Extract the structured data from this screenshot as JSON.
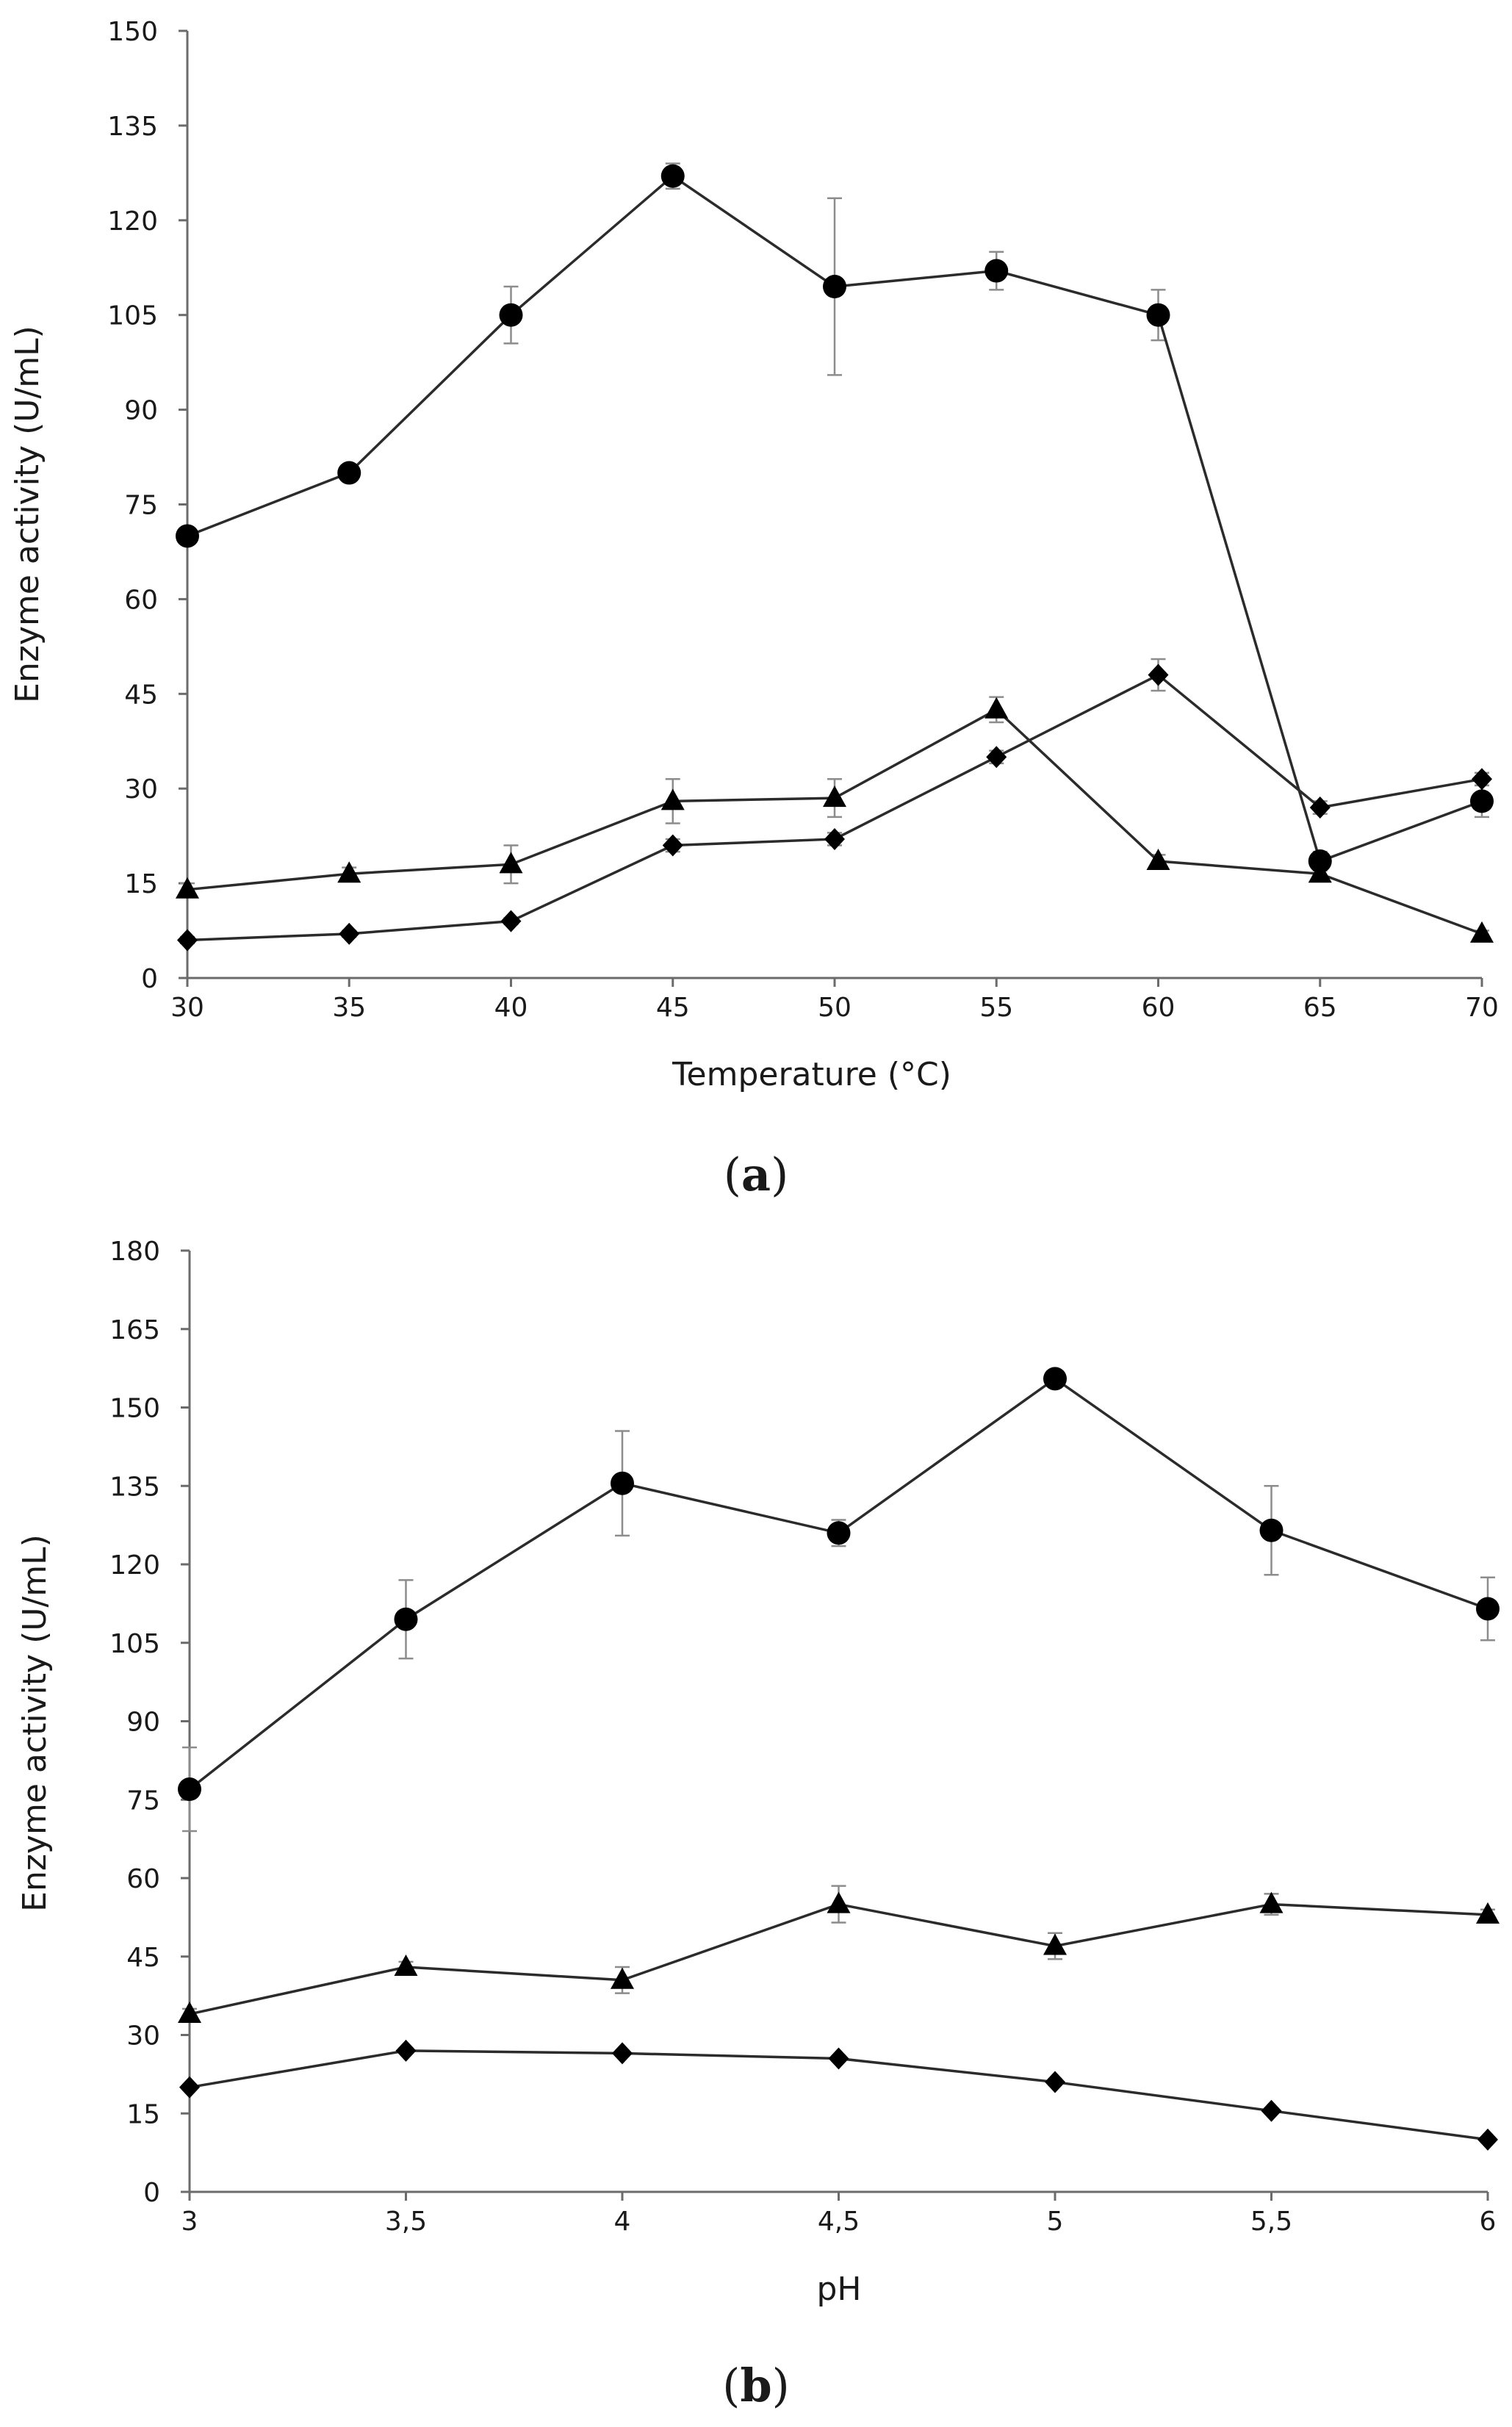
{
  "chart_data": [
    {
      "id": "a",
      "type": "line",
      "caption_letter": "a",
      "xlabel": "Temperature (°C)",
      "ylabel": "Enzyme activity (U/mL)",
      "x": [
        30,
        35,
        40,
        45,
        50,
        55,
        60,
        65,
        70
      ],
      "x_tick_labels": [
        "30",
        "35",
        "40",
        "45",
        "50",
        "55",
        "60",
        "65",
        "70"
      ],
      "xlim": [
        30,
        70
      ],
      "ylim": [
        0,
        150
      ],
      "y_ticks": [
        0,
        15,
        30,
        45,
        60,
        75,
        90,
        105,
        120,
        135,
        150
      ],
      "y_tick_labels": [
        "0",
        "15",
        "30",
        "45",
        "60",
        "75",
        "90",
        "105",
        "120",
        "135",
        "150"
      ],
      "series": [
        {
          "marker": "circle",
          "values": [
            70,
            80,
            105,
            127,
            109.5,
            112,
            105,
            18.5,
            28
          ],
          "errors": [
            1.0,
            1.0,
            4.5,
            2.0,
            14.0,
            3.0,
            4.0,
            1.5,
            2.5
          ]
        },
        {
          "marker": "triangle",
          "values": [
            14,
            16.5,
            18,
            28,
            28.5,
            42.5,
            18.5,
            16.5,
            7
          ],
          "errors": [
            1.0,
            1.0,
            3.0,
            3.5,
            3.0,
            2.0,
            1.0,
            1.0,
            0.5
          ]
        },
        {
          "marker": "diamond",
          "values": [
            6,
            7,
            9,
            21,
            22,
            35,
            48,
            27,
            31.5
          ],
          "errors": [
            0.5,
            0.5,
            0.5,
            1.0,
            1.0,
            1.0,
            2.5,
            1.0,
            1.0
          ]
        }
      ]
    },
    {
      "id": "b",
      "type": "line",
      "caption_letter": "b",
      "xlabel": "pH",
      "ylabel": "Enzyme activity (U/mL)",
      "x": [
        3,
        3.5,
        4,
        4.5,
        5,
        5.5,
        6
      ],
      "x_tick_labels": [
        "3",
        "3,5",
        "4",
        "4,5",
        "5",
        "5,5",
        "6"
      ],
      "xlim": [
        3,
        6
      ],
      "ylim": [
        0,
        180
      ],
      "y_ticks": [
        0,
        15,
        30,
        45,
        60,
        75,
        90,
        105,
        120,
        135,
        150,
        165,
        180
      ],
      "y_tick_labels": [
        "0",
        "15",
        "30",
        "45",
        "60",
        "75",
        "90",
        "105",
        "120",
        "135",
        "150",
        "165",
        "180"
      ],
      "series": [
        {
          "marker": "circle",
          "values": [
            77,
            109.5,
            135.5,
            126,
            155.5,
            126.5,
            111.5
          ],
          "errors": [
            8.0,
            7.5,
            10.0,
            2.5,
            1.0,
            8.5,
            6.0
          ]
        },
        {
          "marker": "triangle",
          "values": [
            34,
            43,
            40.5,
            55,
            47,
            55,
            53
          ],
          "errors": [
            1.0,
            1.0,
            2.5,
            3.5,
            2.5,
            2.0,
            1.0
          ]
        },
        {
          "marker": "diamond",
          "values": [
            20,
            27,
            26.5,
            25.5,
            21,
            15.5,
            10
          ],
          "errors": [
            0.5,
            0.5,
            0.5,
            0.5,
            0.5,
            0.5,
            0.5
          ]
        }
      ]
    }
  ]
}
